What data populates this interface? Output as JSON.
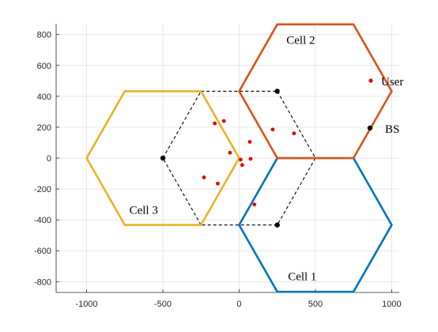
{
  "chart_data": {
    "type": "scatter",
    "title": "",
    "xlabel": "",
    "ylabel": "",
    "xlim": [
      -1200,
      1050
    ],
    "ylim": [
      -870,
      870
    ],
    "xticks": [
      -1000,
      -500,
      0,
      500,
      1000
    ],
    "yticks": [
      -800,
      -600,
      -400,
      -200,
      0,
      200,
      400,
      600,
      800
    ],
    "x_tick_labels": [
      "-1000",
      "-500",
      "0",
      "500",
      "1000"
    ],
    "y_tick_labels": [
      "-800",
      "-600",
      "-400",
      "-200",
      "0",
      "200",
      "400",
      "600",
      "800"
    ],
    "grid": true,
    "legend_position": "right",
    "legend": {
      "user_label": "User",
      "bs_label": "BS"
    },
    "colors": {
      "cell1": "#0072bd",
      "cell2": "#d95319",
      "cell3": "#edb120",
      "user": "#e00000",
      "bs": "#000000",
      "links": "#000000",
      "grid": "#e6e6e6",
      "axis": "#262626"
    },
    "cells": [
      {
        "name": "Cell 1",
        "center": [
          500,
          -433
        ],
        "radius": 500,
        "label_pos": [
          320,
          -790
        ]
      },
      {
        "name": "Cell 2",
        "center": [
          500,
          433
        ],
        "radius": 500,
        "label_pos": [
          310,
          740
        ]
      },
      {
        "name": "Cell 3",
        "center": [
          -500,
          0
        ],
        "radius": 500,
        "label_pos": [
          -720,
          -360
        ]
      }
    ],
    "base_stations": [
      {
        "x": -500,
        "y": 0
      },
      {
        "x": 250,
        "y": 433
      },
      {
        "x": 250,
        "y": -433
      }
    ],
    "bs_links": [
      [
        [
          -500,
          0
        ],
        [
          -250,
          433
        ]
      ],
      [
        [
          -250,
          433
        ],
        [
          250,
          433
        ]
      ],
      [
        [
          250,
          433
        ],
        [
          500,
          0
        ]
      ],
      [
        [
          500,
          0
        ],
        [
          250,
          -433
        ]
      ],
      [
        [
          250,
          -433
        ],
        [
          -250,
          -433
        ]
      ],
      [
        [
          -250,
          -433
        ],
        [
          -500,
          0
        ]
      ]
    ],
    "users": [
      {
        "x": -160,
        "y": 225
      },
      {
        "x": -100,
        "y": 240
      },
      {
        "x": 220,
        "y": 185
      },
      {
        "x": 360,
        "y": 160
      },
      {
        "x": 70,
        "y": 105
      },
      {
        "x": -60,
        "y": 35
      },
      {
        "x": 10,
        "y": -10
      },
      {
        "x": 75,
        "y": -5
      },
      {
        "x": 20,
        "y": -45
      },
      {
        "x": -230,
        "y": -125
      },
      {
        "x": -140,
        "y": -165
      },
      {
        "x": 100,
        "y": -300
      }
    ]
  }
}
